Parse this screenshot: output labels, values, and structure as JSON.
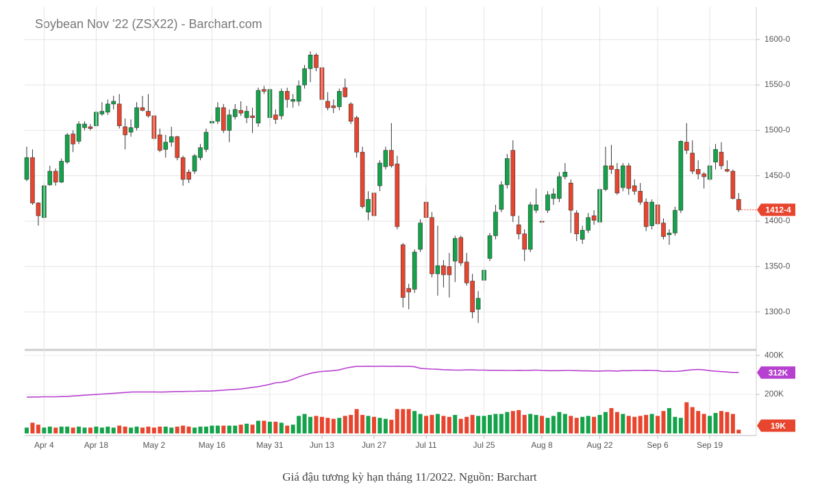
{
  "chart_data": [
    {
      "type": "candlestick",
      "title": "Soybean Nov '22 (ZSX22) - Barchart.com",
      "up_color": "#14a34a",
      "down_color": "#e8452e",
      "open": [
        1446,
        1470,
        1420,
        1404,
        1440,
        1455,
        1443,
        1465,
        1496,
        1488,
        1503,
        1504,
        1505,
        1518,
        1520,
        1529,
        1529,
        1504,
        1498,
        1503,
        1525,
        1521,
        1516,
        1495,
        1479,
        1487,
        1493,
        1470,
        1454,
        1455,
        1470,
        1479,
        1508,
        1510,
        1525,
        1500,
        1515,
        1522,
        1514,
        1516,
        1508,
        1545,
        1514,
        1517,
        1516,
        1543,
        1532,
        1532,
        1550,
        1568,
        1583,
        1569,
        1532,
        1527,
        1526,
        1547,
        1529,
        1514,
        1476,
        1410,
        1431,
        1439,
        1460,
        1478,
        1463,
        1374,
        1326,
        1325,
        1369,
        1421,
        1404,
        1342,
        1351,
        1350,
        1356,
        1382,
        1355,
        1334,
        1303,
        1335,
        1359,
        1384,
        1413,
        1440,
        1478,
        1396,
        1386,
        1369,
        1412,
        1400,
        1412,
        1425,
        1425,
        1449,
        1442,
        1409,
        1380,
        1390,
        1406,
        1399,
        1435,
        1461,
        1457,
        1437,
        1461,
        1439,
        1433,
        1421,
        1395,
        1418,
        1398,
        1385,
        1387,
        1412,
        1487,
        1475,
        1457,
        1452,
        1446,
        1465,
        1476,
        1457,
        1455,
        1424
      ],
      "high": [
        1482,
        1479,
        1421,
        1442,
        1461,
        1458,
        1469,
        1497,
        1500,
        1510,
        1510,
        1507,
        1523,
        1531,
        1534,
        1538,
        1540,
        1513,
        1512,
        1531,
        1538,
        1540,
        1517,
        1502,
        1495,
        1504,
        1494,
        1472,
        1457,
        1474,
        1485,
        1502,
        1516,
        1531,
        1529,
        1523,
        1529,
        1532,
        1527,
        1525,
        1547,
        1549,
        1547,
        1523,
        1546,
        1547,
        1540,
        1555,
        1572,
        1587,
        1585,
        1572,
        1542,
        1534,
        1546,
        1557,
        1531,
        1516,
        1482,
        1433,
        1436,
        1467,
        1482,
        1508,
        1472,
        1376,
        1331,
        1369,
        1402,
        1439,
        1410,
        1395,
        1357,
        1365,
        1384,
        1384,
        1365,
        1342,
        1323,
        1350,
        1387,
        1418,
        1444,
        1474,
        1489,
        1406,
        1391,
        1421,
        1436,
        1404,
        1433,
        1436,
        1454,
        1464,
        1446,
        1412,
        1395,
        1409,
        1412,
        1439,
        1482,
        1484,
        1464,
        1464,
        1464,
        1446,
        1442,
        1425,
        1424,
        1429,
        1403,
        1391,
        1416,
        1489,
        1508,
        1489,
        1467,
        1454,
        1482,
        1485,
        1487,
        1467,
        1457,
        1431
      ],
      "low": [
        1444,
        1418,
        1395,
        1402,
        1439,
        1439,
        1442,
        1463,
        1476,
        1485,
        1500,
        1500,
        1502,
        1516,
        1517,
        1523,
        1502,
        1479,
        1493,
        1500,
        1521,
        1514,
        1489,
        1476,
        1470,
        1482,
        1467,
        1439,
        1442,
        1452,
        1467,
        1476,
        1502,
        1507,
        1497,
        1487,
        1512,
        1516,
        1508,
        1497,
        1504,
        1540,
        1504,
        1507,
        1512,
        1525,
        1525,
        1527,
        1546,
        1553,
        1565,
        1516,
        1522,
        1519,
        1522,
        1536,
        1507,
        1470,
        1414,
        1401,
        1399,
        1433,
        1457,
        1459,
        1391,
        1305,
        1303,
        1321,
        1366,
        1401,
        1338,
        1318,
        1327,
        1316,
        1333,
        1351,
        1329,
        1293,
        1288,
        1323,
        1356,
        1380,
        1410,
        1436,
        1399,
        1380,
        1356,
        1366,
        1409,
        1397,
        1409,
        1418,
        1421,
        1446,
        1387,
        1378,
        1375,
        1387,
        1396,
        1395,
        1433,
        1452,
        1429,
        1433,
        1429,
        1429,
        1418,
        1389,
        1391,
        1391,
        1380,
        1374,
        1384,
        1409,
        1474,
        1452,
        1446,
        1436,
        1444,
        1457,
        1457,
        1454,
        1424,
        1410
      ],
      "close": [
        1470,
        1420,
        1406,
        1439,
        1455,
        1443,
        1466,
        1495,
        1485,
        1507,
        1507,
        1502,
        1520,
        1521,
        1529,
        1532,
        1505,
        1495,
        1503,
        1525,
        1522,
        1516,
        1491,
        1478,
        1487,
        1493,
        1470,
        1446,
        1446,
        1472,
        1481,
        1498,
        1510,
        1525,
        1500,
        1517,
        1523,
        1519,
        1521,
        1514,
        1544,
        1543,
        1545,
        1512,
        1543,
        1534,
        1534,
        1549,
        1568,
        1583,
        1569,
        1534,
        1525,
        1525,
        1543,
        1537,
        1510,
        1476,
        1416,
        1424,
        1406,
        1464,
        1478,
        1461,
        1394,
        1316,
        1322,
        1366,
        1398,
        1404,
        1342,
        1351,
        1341,
        1341,
        1381,
        1354,
        1332,
        1300,
        1315,
        1346,
        1384,
        1410,
        1440,
        1469,
        1406,
        1386,
        1369,
        1418,
        1418,
        1399,
        1429,
        1430,
        1449,
        1454,
        1412,
        1386,
        1390,
        1404,
        1401,
        1435,
        1461,
        1457,
        1431,
        1461,
        1436,
        1433,
        1421,
        1394,
        1421,
        1397,
        1383,
        1387,
        1412,
        1488,
        1478,
        1455,
        1452,
        1449,
        1461,
        1479,
        1461,
        1455,
        1425,
        1412.5
      ],
      "last_price": {
        "value": 1412.5,
        "label": "1412-4"
      },
      "ylim": [
        1259,
        1636
      ],
      "yticks": [
        {
          "value": 1300,
          "label": "1300-0"
        },
        {
          "value": 1350,
          "label": "1350-0"
        },
        {
          "value": 1400,
          "label": "1400-0"
        },
        {
          "value": 1450,
          "label": "1450-0"
        },
        {
          "value": 1500,
          "label": "1500-0"
        },
        {
          "value": 1550,
          "label": "1550-0"
        },
        {
          "value": 1600,
          "label": "1600-0"
        }
      ],
      "grid": true
    },
    {
      "type": "volume",
      "categories": [
        null,
        null,
        null,
        "Apr 4",
        null,
        null,
        null,
        null,
        null,
        null,
        null,
        null,
        "Apr 18",
        null,
        null,
        null,
        null,
        null,
        null,
        null,
        null,
        null,
        "May 2",
        null,
        null,
        null,
        null,
        null,
        null,
        null,
        null,
        null,
        "May 16",
        null,
        null,
        null,
        null,
        null,
        null,
        null,
        null,
        null,
        "May 31",
        null,
        null,
        null,
        null,
        null,
        null,
        null,
        null,
        "Jun 13",
        null,
        null,
        null,
        null,
        null,
        null,
        null,
        null,
        "Jun 27",
        null,
        null,
        null,
        null,
        null,
        null,
        null,
        null,
        "Jul 11",
        null,
        null,
        null,
        null,
        null,
        null,
        null,
        null,
        null,
        "Jul 25",
        null,
        null,
        null,
        null,
        null,
        null,
        null,
        null,
        null,
        "Aug 8",
        null,
        null,
        null,
        null,
        null,
        null,
        null,
        null,
        null,
        "Aug 22",
        null,
        null,
        null,
        null,
        null,
        null,
        null,
        null,
        null,
        "Sep 6",
        null,
        null,
        null,
        null,
        null,
        null,
        null,
        null,
        "Sep 19",
        null,
        null,
        null,
        null,
        null
      ],
      "volume": [
        30000,
        55000,
        45000,
        30000,
        35000,
        30000,
        35000,
        35000,
        30000,
        35000,
        30000,
        30000,
        35000,
        30000,
        35000,
        30000,
        40000,
        35000,
        30000,
        35000,
        30000,
        35000,
        30000,
        35000,
        35000,
        30000,
        35000,
        40000,
        35000,
        30000,
        35000,
        35000,
        40000,
        40000,
        40000,
        40000,
        40000,
        45000,
        50000,
        45000,
        65000,
        65000,
        60000,
        60000,
        55000,
        40000,
        45000,
        90000,
        100000,
        85000,
        90000,
        85000,
        80000,
        75000,
        80000,
        90000,
        95000,
        125000,
        95000,
        90000,
        85000,
        80000,
        75000,
        70000,
        125000,
        125000,
        125000,
        115000,
        100000,
        90000,
        95000,
        100000,
        90000,
        85000,
        95000,
        75000,
        85000,
        95000,
        90000,
        90000,
        95000,
        100000,
        100000,
        110000,
        115000,
        120000,
        95000,
        100000,
        95000,
        90000,
        80000,
        90000,
        110000,
        100000,
        90000,
        80000,
        85000,
        90000,
        85000,
        95000,
        110000,
        130000,
        110000,
        100000,
        90000,
        85000,
        90000,
        95000,
        100000,
        90000,
        115000,
        130000,
        85000,
        80000,
        160000,
        135000,
        115000,
        100000,
        90000,
        105000,
        115000,
        110000,
        100000,
        19000
      ],
      "open_interest": [
        186000,
        187000,
        187000,
        188000,
        188000,
        188000,
        189000,
        190000,
        192000,
        194000,
        196000,
        198000,
        200000,
        202000,
        204000,
        206000,
        208000,
        210000,
        212000,
        213000,
        213000,
        213000,
        213000,
        212000,
        213000,
        214000,
        215000,
        215000,
        216000,
        216000,
        217000,
        217000,
        218000,
        220000,
        222000,
        224000,
        226000,
        228000,
        232000,
        236000,
        240000,
        246000,
        252000,
        260000,
        262000,
        268000,
        278000,
        290000,
        300000,
        308000,
        314000,
        318000,
        320000,
        322000,
        326000,
        334000,
        340000,
        344000,
        344000,
        345000,
        344000,
        345000,
        345000,
        344000,
        345000,
        344000,
        344000,
        342000,
        334000,
        332000,
        330000,
        329000,
        327000,
        326000,
        325000,
        325000,
        326000,
        326000,
        325000,
        325000,
        324000,
        324000,
        324000,
        323000,
        323000,
        324000,
        323000,
        324000,
        325000,
        323000,
        322000,
        322000,
        322000,
        323000,
        323000,
        322000,
        321000,
        321000,
        320000,
        320000,
        321000,
        321000,
        320000,
        322000,
        322000,
        323000,
        323000,
        324000,
        323000,
        322000,
        318000,
        319000,
        318000,
        320000,
        324000,
        327000,
        328000,
        326000,
        322000,
        319000,
        317000,
        315000,
        313000,
        312000
      ],
      "open_interest_color": "#b640cf",
      "last_volume": {
        "value": 19000,
        "label": "19K"
      },
      "last_open_interest": {
        "value": 312000,
        "label": "312K"
      },
      "ylim": [
        0,
        425000
      ],
      "yticks": [
        {
          "value": 200000,
          "label": "200K"
        },
        {
          "value": 400000,
          "label": "400K"
        }
      ],
      "grid": true
    }
  ],
  "caption": "Giá đậu tương kỳ hạn tháng 11/2022. Nguồn: Barchart"
}
